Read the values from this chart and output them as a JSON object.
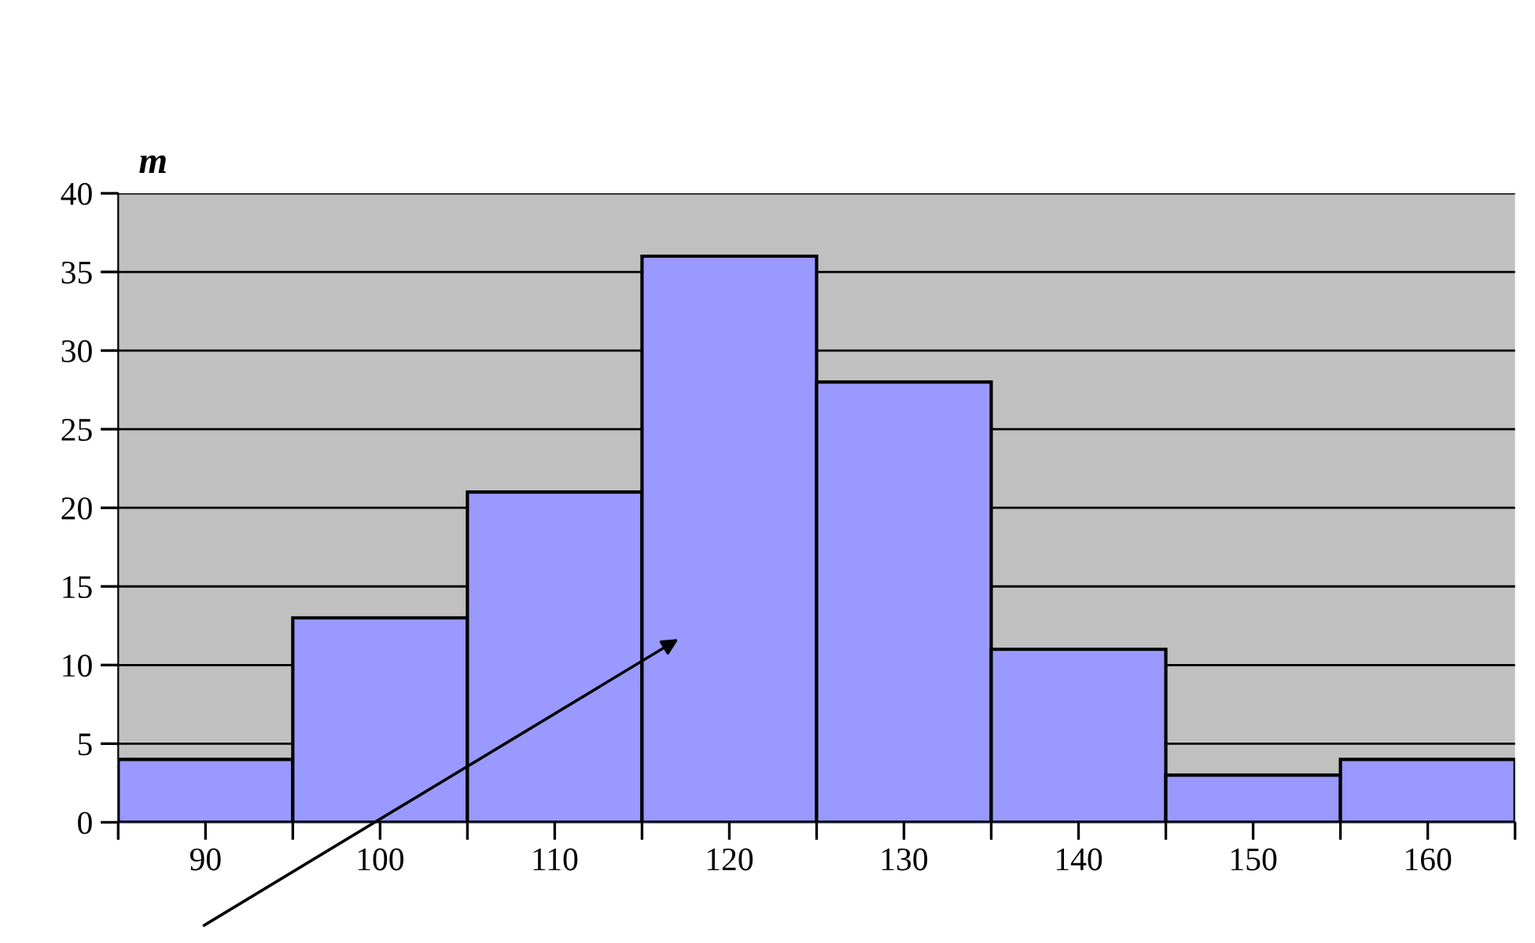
{
  "chart_data": {
    "type": "histogram",
    "ylabel": "m",
    "bins": [
      85,
      95,
      105,
      115,
      125,
      135,
      145,
      155,
      165
    ],
    "values": [
      4,
      13,
      21,
      36,
      28,
      11,
      3,
      4
    ],
    "color": "#9999ff",
    "xlim": [
      85,
      165
    ],
    "xticks": [
      {
        "value": 85,
        "label": null
      },
      90,
      {
        "value": 95,
        "label": null
      },
      100,
      {
        "value": 105,
        "label": null
      },
      110,
      {
        "value": 115,
        "label": null
      },
      120,
      {
        "value": 125,
        "label": null
      },
      130,
      {
        "value": 135,
        "label": null
      },
      140,
      {
        "value": 145,
        "label": null
      },
      150,
      {
        "value": 155,
        "label": null
      },
      160,
      {
        "value": 165,
        "label": null
      }
    ],
    "ylim": [
      0,
      40
    ],
    "yticks": [
      0,
      5,
      10,
      15,
      20,
      25,
      30,
      35,
      40
    ],
    "grid": "y"
  }
}
